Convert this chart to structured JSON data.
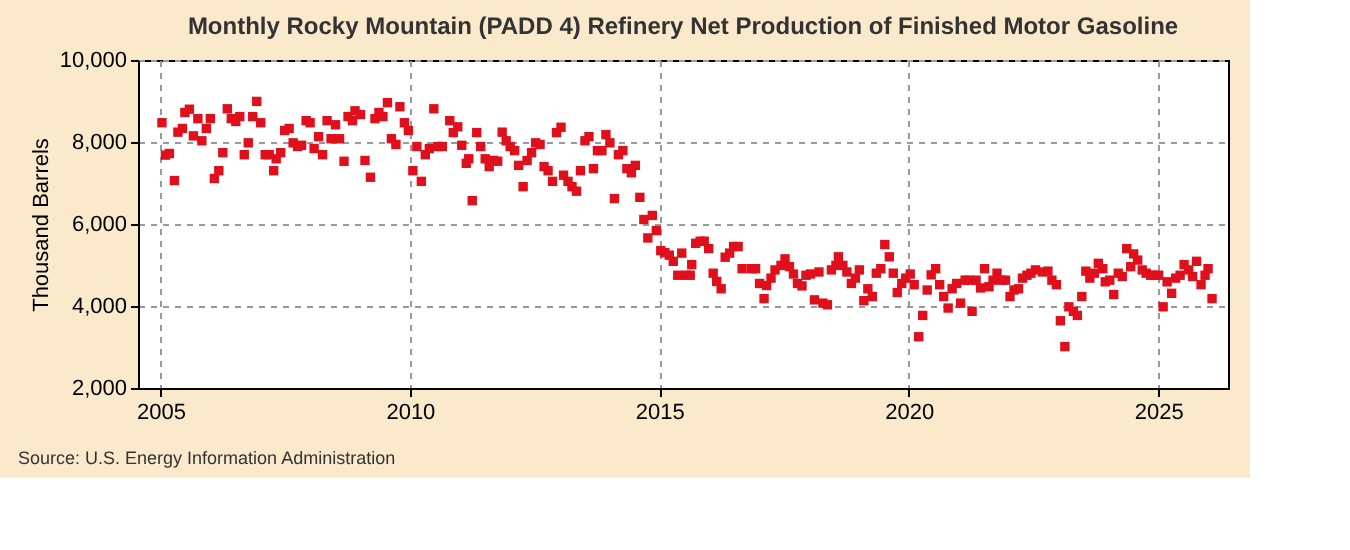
{
  "chart_data": {
    "type": "scatter",
    "title": "Monthly Rocky Mountain (PADD 4) Refinery Net Production of Finished Motor Gasoline",
    "ylabel": "Thousand Barrels",
    "annotations": [
      "Source: U.S. Energy Information Administration"
    ],
    "xlim": [
      2004.55,
      2026.4
    ],
    "xticks": [
      2005,
      2010,
      2015,
      2020,
      2025
    ],
    "ylim": [
      2000,
      10000
    ],
    "yticks": [
      {
        "value": 2000,
        "label": "2,000"
      },
      {
        "value": 4000,
        "label": "4,000"
      },
      {
        "value": 6000,
        "label": "6,000"
      },
      {
        "value": 8000,
        "label": "8,000"
      },
      {
        "value": 10000,
        "label": "10,000"
      }
    ],
    "grid": true,
    "marker": "square",
    "series": [
      {
        "color": "#e00f1c",
        "x": [
          2005.03,
          2005.1,
          2005.18,
          2005.28,
          2005.35,
          2005.44,
          2005.49,
          2005.58,
          2005.66,
          2005.75,
          2005.83,
          2005.92,
          2006.0,
          2006.08,
          2006.17,
          2006.25,
          2006.34,
          2006.42,
          2006.51,
          2006.59,
          2006.68,
          2006.76,
          2006.85,
          2006.93,
          2007.01,
          2007.1,
          2007.18,
          2007.27,
          2007.32,
          2007.41,
          2007.49,
          2007.58,
          2007.66,
          2007.75,
          2007.83,
          2007.92,
          2008.0,
          2008.08,
          2008.17,
          2008.25,
          2008.34,
          2008.42,
          2008.51,
          2008.59,
          2008.68,
          2008.76,
          2008.85,
          2008.9,
          2009.01,
          2009.1,
          2009.21,
          2009.3,
          2009.38,
          2009.46,
          2009.55,
          2009.63,
          2009.72,
          2009.8,
          2009.89,
          2009.97,
          2010.06,
          2010.14,
          2010.23,
          2010.31,
          2010.39,
          2010.48,
          2010.56,
          2010.65,
          2010.8,
          2010.87,
          2010.96,
          2011.04,
          2011.13,
          2011.18,
          2011.25,
          2011.34,
          2011.42,
          2011.51,
          2011.59,
          2011.68,
          2011.76,
          2011.85,
          2011.93,
          2012.01,
          2012.1,
          2012.18,
          2012.27,
          2012.35,
          2012.44,
          2012.52,
          2012.61,
          2012.69,
          2012.77,
          2012.86,
          2012.94,
          2013.03,
          2013.08,
          2013.17,
          2013.25,
          2013.34,
          2013.42,
          2013.51,
          2013.59,
          2013.68,
          2013.76,
          2013.85,
          2013.93,
          2014.01,
          2014.1,
          2014.18,
          2014.27,
          2014.35,
          2014.44,
          2014.52,
          2014.61,
          2014.69,
          2014.77,
          2014.86,
          2014.94,
          2015.03,
          2015.11,
          2015.2,
          2015.28,
          2015.37,
          2015.45,
          2015.54,
          2015.62,
          2015.65,
          2015.73,
          2015.82,
          2015.9,
          2015.99,
          2016.08,
          2016.15,
          2016.24,
          2016.32,
          2016.41,
          2016.49,
          2016.58,
          2016.66,
          2016.85,
          2016.93,
          2017.01,
          2017.1,
          2017.15,
          2017.24,
          2017.32,
          2017.44,
          2017.52,
          2017.61,
          2017.69,
          2017.77,
          2017.86,
          2017.94,
          2018.03,
          2018.11,
          2018.2,
          2018.28,
          2018.37,
          2018.45,
          2018.54,
          2018.59,
          2018.68,
          2018.76,
          2018.85,
          2018.93,
          2019.01,
          2019.1,
          2019.18,
          2019.27,
          2019.35,
          2019.44,
          2019.52,
          2019.61,
          2019.69,
          2019.77,
          2019.86,
          2019.94,
          2020.03,
          2020.11,
          2020.2,
          2020.28,
          2020.37,
          2020.45,
          2020.54,
          2020.62,
          2020.7,
          2020.79,
          2020.87,
          2020.96,
          2021.04,
          2021.13,
          2021.21,
          2021.27,
          2021.35,
          2021.44,
          2021.52,
          2021.61,
          2021.69,
          2021.77,
          2021.86,
          2021.94,
          2022.03,
          2022.11,
          2022.2,
          2022.28,
          2022.37,
          2022.45,
          2022.54,
          2022.68,
          2022.79,
          2022.87,
          2022.96,
          2023.04,
          2023.13,
          2023.21,
          2023.3,
          2023.38,
          2023.47,
          2023.55,
          2023.63,
          2023.72,
          2023.8,
          2023.89,
          2023.94,
          2024.03,
          2024.11,
          2024.2,
          2024.28,
          2024.37,
          2024.45,
          2024.51,
          2024.59,
          2024.68,
          2024.76,
          2024.85,
          2024.93,
          2025.01,
          2025.1,
          2025.18,
          2025.27,
          2025.35,
          2025.44,
          2025.52,
          2025.61,
          2025.69,
          2025.77,
          2025.86,
          2025.94,
          2026.0,
          2026.08
        ],
        "values": [
          8470,
          7680,
          7720,
          7060,
          8240,
          8330,
          8720,
          8800,
          8150,
          8570,
          8030,
          8330,
          8570,
          7110,
          7300,
          7740,
          8810,
          8570,
          8500,
          8620,
          7690,
          7980,
          8620,
          8990,
          8470,
          7690,
          7690,
          7300,
          7590,
          7740,
          8280,
          8330,
          7980,
          7890,
          7920,
          8520,
          8470,
          7840,
          8130,
          7690,
          8520,
          8080,
          8420,
          8080,
          7530,
          8620,
          8520,
          8760,
          8670,
          7550,
          7140,
          8570,
          8720,
          8620,
          8960,
          8080,
          7940,
          8860,
          8470,
          8280,
          7300,
          7890,
          7040,
          7690,
          7840,
          8810,
          7890,
          7890,
          8520,
          8230,
          8370,
          7920,
          7480,
          7590,
          6570,
          8230,
          7890,
          7590,
          7400,
          7550,
          7530,
          8240,
          8030,
          7890,
          7790,
          7430,
          6910,
          7550,
          7740,
          7980,
          7940,
          7400,
          7300,
          7040,
          8230,
          8360,
          7190,
          7040,
          6910,
          6800,
          7300,
          8030,
          8130,
          7350,
          7790,
          7790,
          8180,
          7980,
          6620,
          7690,
          7790,
          7350,
          7250,
          7430,
          6650,
          6110,
          5660,
          6210,
          5840,
          5350,
          5300,
          5240,
          5090,
          4750,
          5290,
          4750,
          4750,
          5010,
          5530,
          5580,
          5580,
          5400,
          4800,
          4600,
          4420,
          5190,
          5290,
          5450,
          5450,
          4910,
          4910,
          4910,
          4550,
          4180,
          4500,
          4680,
          4880,
          4990,
          5150,
          4960,
          4780,
          4550,
          4490,
          4750,
          4780,
          4150,
          4830,
          4070,
          4030,
          4880,
          4990,
          5200,
          4990,
          4830,
          4550,
          4680,
          4880,
          4130,
          4420,
          4230,
          4800,
          4910,
          5500,
          5200,
          4800,
          4330,
          4550,
          4680,
          4780,
          4520,
          3250,
          3770,
          4390,
          4760,
          4910,
          4520,
          4230,
          3950,
          4420,
          4550,
          4070,
          4630,
          4630,
          3870,
          4630,
          4440,
          4910,
          4470,
          4630,
          4800,
          4630,
          4630,
          4230,
          4390,
          4420,
          4680,
          4750,
          4800,
          4880,
          4830,
          4850,
          4630,
          4520,
          3640,
          3010,
          3980,
          3870,
          3770,
          4230,
          4850,
          4680,
          4800,
          5040,
          4910,
          4590,
          4630,
          4280,
          4800,
          4720,
          5400,
          4960,
          5270,
          5120,
          4880,
          4800,
          4750,
          4750,
          4750,
          3980,
          4590,
          4310,
          4680,
          4750,
          5010,
          4880,
          4720,
          5090,
          4520,
          4750,
          4910,
          4180
        ]
      }
    ]
  }
}
